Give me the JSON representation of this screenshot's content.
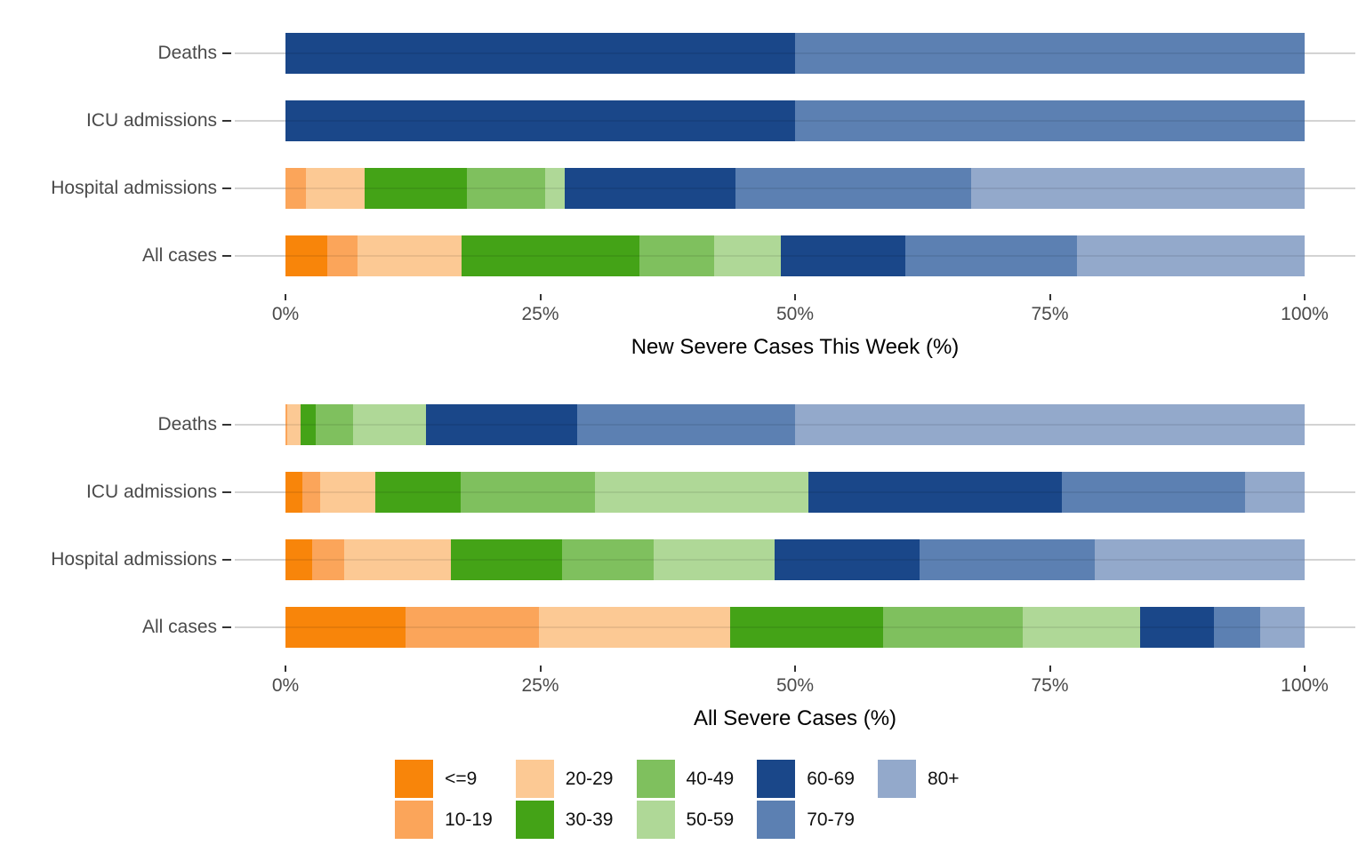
{
  "figure_name": "age-distribution-stacked-bars",
  "chart_data": [
    {
      "type": "bar",
      "orientation": "horizontal",
      "stacked": true,
      "units": "percent",
      "xlabel": "New Severe Cases This Week (%)",
      "ylabel": "",
      "xlim": [
        0,
        100
      ],
      "grid": "horizontal-only",
      "x_ticks": [
        "0%",
        "25%",
        "50%",
        "75%",
        "100%"
      ],
      "x_tick_positions": [
        0,
        25,
        50,
        75,
        100
      ],
      "categories": [
        "Deaths",
        "ICU admissions",
        "Hospital admissions",
        "All cases"
      ],
      "series": [
        {
          "name": "<=9",
          "color": "#F8850A",
          "values": [
            0,
            0,
            0,
            4.1
          ]
        },
        {
          "name": "10-19",
          "color": "#FBA55A",
          "values": [
            0,
            0,
            2.0,
            3.0
          ]
        },
        {
          "name": "20-29",
          "color": "#FCC994",
          "values": [
            0,
            0,
            5.8,
            10.2
          ]
        },
        {
          "name": "30-39",
          "color": "#44A317",
          "values": [
            0,
            0,
            10.0,
            17.4
          ]
        },
        {
          "name": "40-49",
          "color": "#7FC05E",
          "values": [
            0,
            0,
            7.7,
            7.4
          ]
        },
        {
          "name": "50-59",
          "color": "#AFD897",
          "values": [
            0,
            0,
            1.9,
            6.5
          ]
        },
        {
          "name": "60-69",
          "color": "#1A4789",
          "values": [
            50,
            50,
            16.8,
            12.2
          ]
        },
        {
          "name": "70-79",
          "color": "#5C80B2",
          "values": [
            50,
            50,
            23.1,
            16.9
          ]
        },
        {
          "name": "80+",
          "color": "#93A9CB",
          "values": [
            0,
            0,
            32.7,
            22.3
          ]
        }
      ]
    },
    {
      "type": "bar",
      "orientation": "horizontal",
      "stacked": true,
      "units": "percent",
      "xlabel": "All Severe Cases (%)",
      "ylabel": "",
      "xlim": [
        0,
        100
      ],
      "grid": "horizontal-only",
      "x_ticks": [
        "0%",
        "25%",
        "50%",
        "75%",
        "100%"
      ],
      "x_tick_positions": [
        0,
        25,
        50,
        75,
        100
      ],
      "categories": [
        "Deaths",
        "ICU admissions",
        "Hospital admissions",
        "All cases"
      ],
      "series": [
        {
          "name": "<=9",
          "color": "#F8850A",
          "values": [
            0,
            1.7,
            2.6,
            11.8
          ]
        },
        {
          "name": "10-19",
          "color": "#FBA55A",
          "values": [
            0.2,
            1.7,
            3.2,
            13.1
          ]
        },
        {
          "name": "20-29",
          "color": "#FCC994",
          "values": [
            1.3,
            5.4,
            10.4,
            18.7
          ]
        },
        {
          "name": "30-39",
          "color": "#44A317",
          "values": [
            1.5,
            8.4,
            10.9,
            15.0
          ]
        },
        {
          "name": "40-49",
          "color": "#7FC05E",
          "values": [
            3.6,
            13.2,
            9.0,
            13.7
          ]
        },
        {
          "name": "50-59",
          "color": "#AFD897",
          "values": [
            7.2,
            20.9,
            11.9,
            11.6
          ]
        },
        {
          "name": "60-69",
          "color": "#1A4789",
          "values": [
            14.8,
            24.9,
            14.2,
            7.2
          ]
        },
        {
          "name": "70-79",
          "color": "#5C80B2",
          "values": [
            21.4,
            18.0,
            17.2,
            4.5
          ]
        },
        {
          "name": "80+",
          "color": "#93A9CB",
          "values": [
            50.0,
            5.8,
            20.6,
            4.4
          ]
        }
      ]
    }
  ],
  "legend": {
    "rows": 2,
    "fill_order": "column-major",
    "entries": [
      {
        "label": "<=9",
        "color": "#F8850A"
      },
      {
        "label": "10-19",
        "color": "#FBA55A"
      },
      {
        "label": "20-29",
        "color": "#FCC994"
      },
      {
        "label": "30-39",
        "color": "#44A317"
      },
      {
        "label": "40-49",
        "color": "#7FC05E"
      },
      {
        "label": "50-59",
        "color": "#AFD897"
      },
      {
        "label": "60-69",
        "color": "#1A4789"
      },
      {
        "label": "70-79",
        "color": "#5C80B2"
      },
      {
        "label": "80+",
        "color": "#93A9CB"
      }
    ]
  }
}
